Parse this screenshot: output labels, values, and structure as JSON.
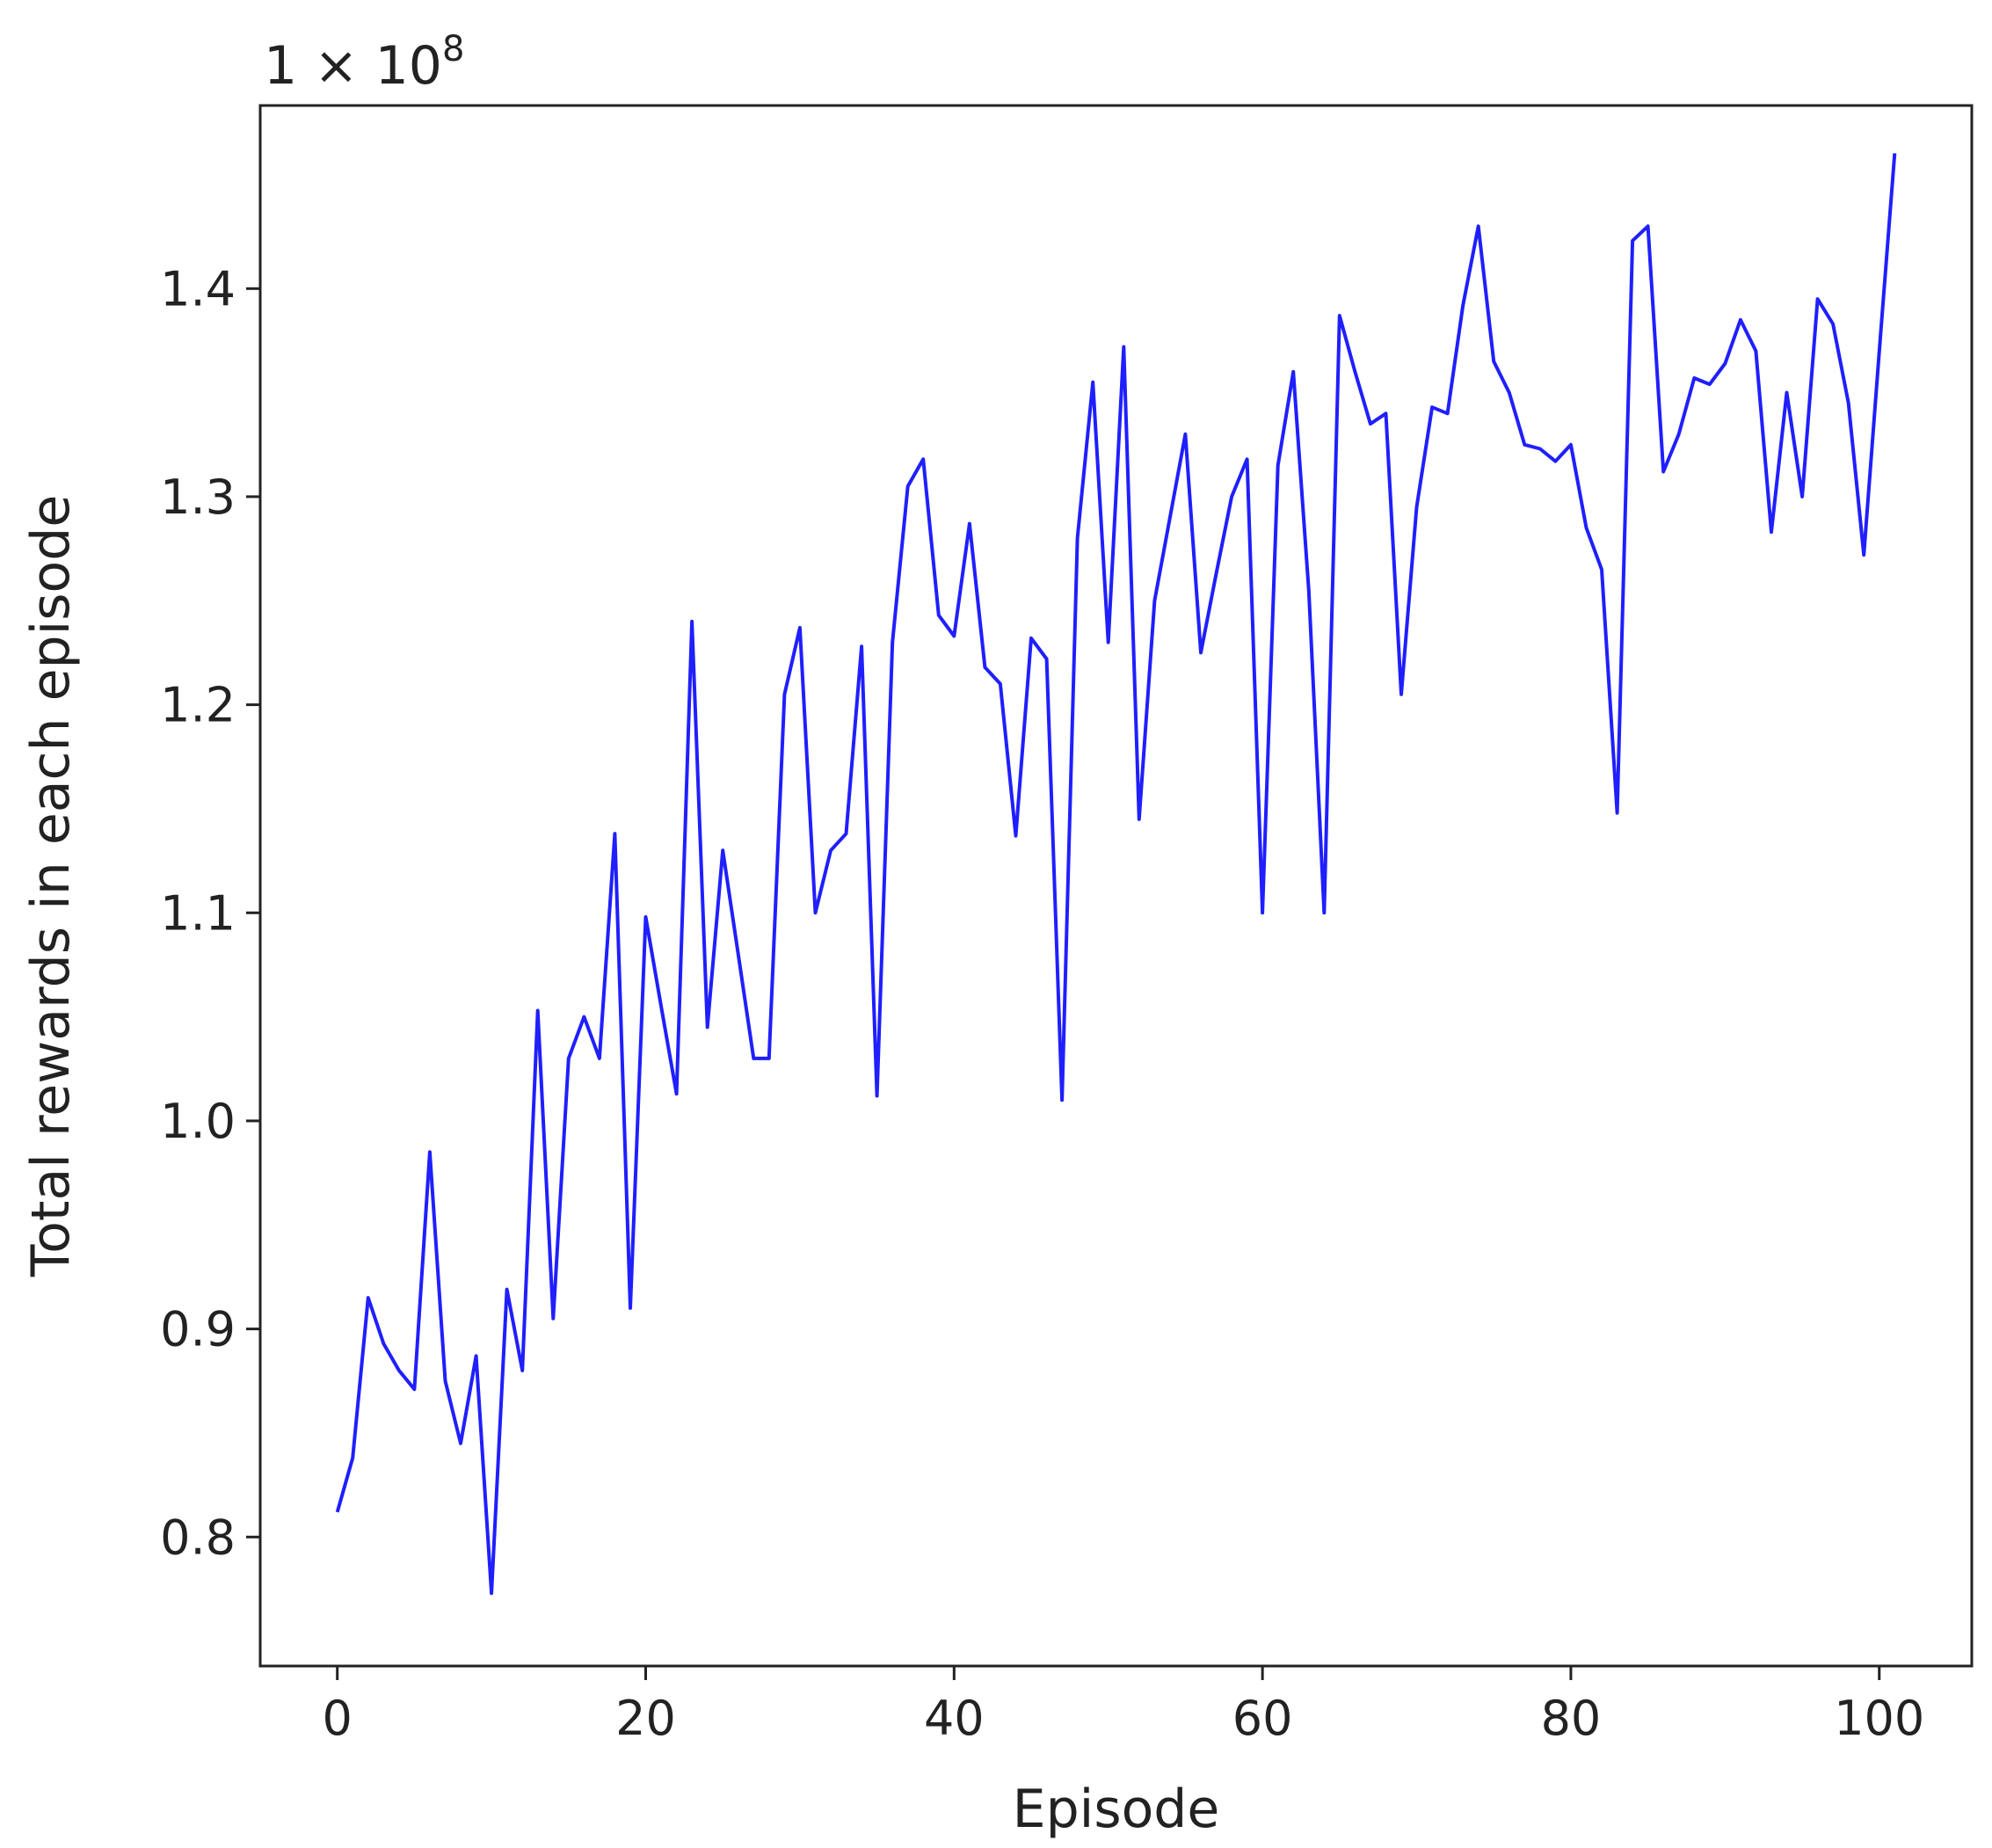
{
  "chart_data": {
    "type": "line",
    "title": "",
    "xlabel": "Episode",
    "ylabel": "Total rewards in each episode",
    "y_offset_label": {
      "base": "1 × 10",
      "exponent": "8"
    },
    "xlim": [
      -5,
      106
    ],
    "ylim": [
      0.738,
      1.488
    ],
    "x_ticks": [
      0,
      20,
      40,
      60,
      80,
      100
    ],
    "x_tick_labels": [
      "0",
      "20",
      "40",
      "60",
      "80",
      "100"
    ],
    "y_ticks": [
      0.8,
      0.9,
      1.0,
      1.1,
      1.2,
      1.3,
      1.4
    ],
    "y_tick_labels": [
      "0.8",
      "0.9",
      "1.0",
      "1.1",
      "1.2",
      "1.3",
      "1.4"
    ],
    "grid": false,
    "colors": {
      "line": "#1f1fff",
      "axes": "#222222"
    },
    "series": [
      {
        "name": "",
        "x": [
          0,
          1,
          2,
          3,
          4,
          5,
          6,
          7,
          8,
          9,
          10,
          11,
          12,
          13,
          14,
          15,
          16,
          17,
          18,
          19,
          20,
          21,
          22,
          23,
          24,
          25,
          26,
          27,
          28,
          29,
          30,
          31,
          32,
          33,
          34,
          35,
          36,
          37,
          38,
          39,
          40,
          41,
          42,
          43,
          44,
          45,
          46,
          47,
          48,
          49,
          50,
          51,
          52,
          53,
          54,
          55,
          56,
          57,
          58,
          59,
          60,
          61,
          62,
          63,
          64,
          65,
          66,
          67,
          68,
          69,
          70,
          71,
          72,
          73,
          74,
          75,
          76,
          77,
          78,
          79,
          80,
          81,
          82,
          83,
          84,
          85,
          86,
          87,
          88,
          89,
          90,
          91,
          92,
          93,
          94,
          95,
          96,
          97,
          98,
          99,
          100,
          101
        ],
        "values": [
          0.812,
          0.838,
          0.915,
          0.893,
          0.88,
          0.871,
          0.985,
          0.875,
          0.845,
          0.887,
          0.773,
          0.919,
          0.88,
          1.053,
          0.905,
          1.03,
          1.05,
          1.03,
          1.138,
          0.91,
          1.098,
          1.055,
          1.013,
          1.24,
          1.045,
          1.13,
          1.08,
          1.03,
          1.03,
          1.205,
          1.237,
          1.1,
          1.13,
          1.138,
          1.228,
          1.012,
          1.23,
          1.305,
          1.318,
          1.243,
          1.233,
          1.287,
          1.218,
          1.21,
          1.137,
          1.232,
          1.222,
          1.01,
          1.28,
          1.355,
          1.23,
          1.372,
          1.145,
          1.25,
          1.29,
          1.33,
          1.225,
          1.263,
          1.3,
          1.318,
          1.1,
          1.315,
          1.36,
          1.255,
          1.1,
          1.387,
          1.36,
          1.335,
          1.34,
          1.205,
          1.295,
          1.343,
          1.34,
          1.392,
          1.43,
          1.365,
          1.35,
          1.325,
          1.323,
          1.317,
          1.325,
          1.285,
          1.265,
          1.148,
          1.423,
          1.43,
          1.312,
          1.33,
          1.357,
          1.354,
          1.364,
          1.385,
          1.37,
          1.283,
          1.35,
          1.3,
          1.395,
          1.383,
          1.345,
          1.272,
          1.37,
          1.465
        ]
      }
    ]
  }
}
